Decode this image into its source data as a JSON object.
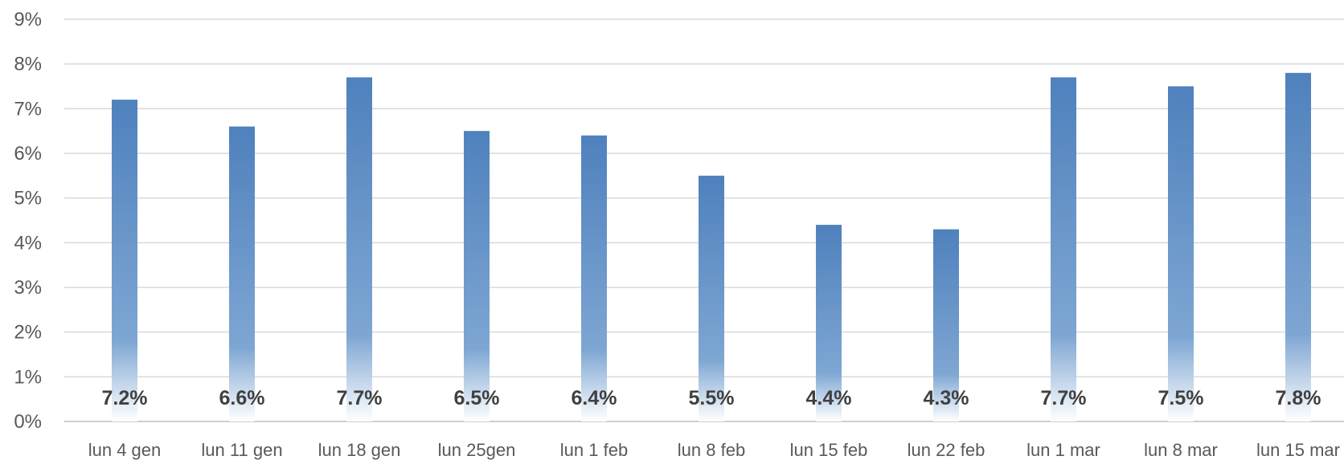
{
  "chart_data": {
    "type": "bar",
    "categories": [
      "lun 4 gen",
      "lun 11 gen",
      "lun 18 gen",
      "lun 25gen",
      "lun 1 feb",
      "lun 8 feb",
      "lun 15 feb",
      "lun 22 feb",
      "lun 1 mar",
      "lun 8 mar",
      "lun 15 mar"
    ],
    "values": [
      7.2,
      6.6,
      7.7,
      6.5,
      6.4,
      5.5,
      4.4,
      4.3,
      7.7,
      7.5,
      7.8
    ],
    "data_labels": [
      "7.2%",
      "6.6%",
      "7.7%",
      "6.5%",
      "6.4%",
      "5.5%",
      "4.4%",
      "4.3%",
      "7.7%",
      "7.5%",
      "7.8%"
    ],
    "title": "",
    "xlabel": "",
    "ylabel": "",
    "ylim": [
      0,
      9
    ],
    "y_ticks": [
      "0%",
      "1%",
      "2%",
      "3%",
      "4%",
      "5%",
      "6%",
      "7%",
      "8%",
      "9%"
    ],
    "grid": true,
    "legend": "none",
    "bar_color": "#4f81bd"
  }
}
